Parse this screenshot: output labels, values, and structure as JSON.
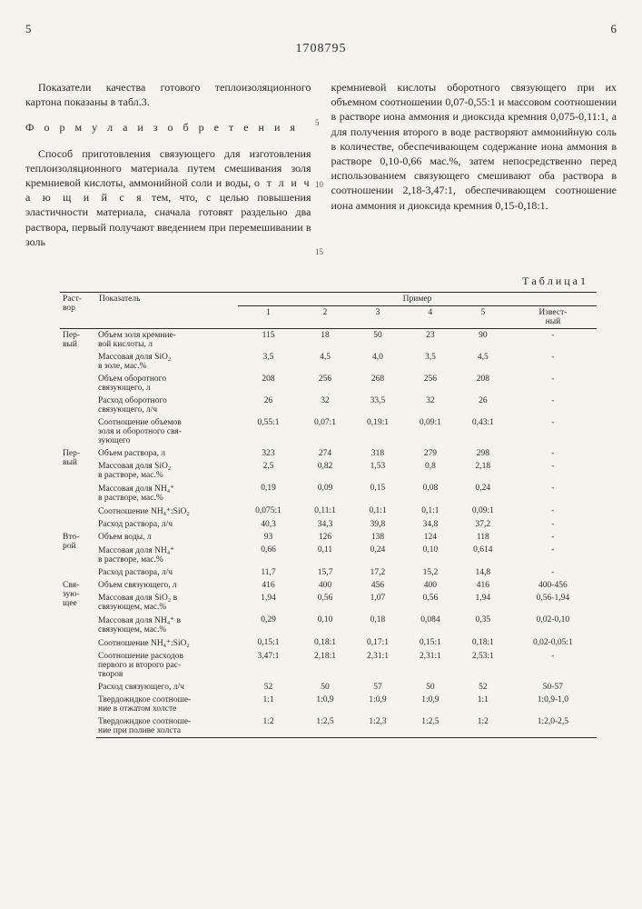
{
  "page": {
    "left_num": "5",
    "right_num": "6",
    "doc_number": "1708795",
    "tick5": "5",
    "tick10": "10",
    "tick15": "15"
  },
  "left_col": {
    "p1": "Показатели качества готового теплоизоляционного картона показаны в табл.3.",
    "formula": "Ф о р м у л а  и з о б р е т е н и я",
    "p2_a": "Способ приготовления связующего для изготовления теплоизоляционного материала путем смешивания золя кремниевой кислоты, аммонийной соли и воды, ",
    "p2_b": "о т л и ч а ю щ и й с я",
    "p2_c": " тем, что, с целью повышения эластичности материала, сначала готовят раздельно два раствора, первый получают введением при перемешивании в золь"
  },
  "right_col": {
    "p1": "кремниевой кислоты оборотного связующего при их объемном соотношении 0,07-0,55:1 и массовом соотношении в растворе иона аммония и диоксида кремния 0,075-0,11:1, а для получения второго в воде растворяют аммонийную соль в количестве, обеспечивающем содержание иона аммония в растворе 0,10-0,66 мас.%, затем непосредственно перед использованием связующего смешивают оба раствора в соотношении 2,18-3,47:1, обеспечивающем соотношение иона аммония и диоксида кремния 0,15-0,18:1."
  },
  "table": {
    "title": "Т а б л и ц а 1",
    "h_rast": "Раст-\nвор",
    "h_pokaz": "Показатель",
    "h_primer": "Пример",
    "h_cols": [
      "1",
      "2",
      "3",
      "4",
      "5",
      "Извест-\nный"
    ],
    "groups": {
      "g1": "Пер-\nвый",
      "g2": "Пер-\nвый",
      "g3": "Вто-\nрой",
      "g4": "Свя-\nзую-\nщее"
    },
    "rows": [
      {
        "g": "g1",
        "l": "Объем золя кремние-\nвой кислоты, л",
        "v": [
          "115",
          "18",
          "50",
          "23",
          "90",
          "-"
        ]
      },
      {
        "g": "g1",
        "l": "Массовая доля SiO₂\nв золе, мас.%",
        "v": [
          "3,5",
          "4,5",
          "4,0",
          "3,5",
          "4,5",
          "-"
        ]
      },
      {
        "g": "g1",
        "l": "Объем оборотного\nсвязующего, л",
        "v": [
          "208",
          "256",
          "268",
          "256",
          "208",
          "-"
        ]
      },
      {
        "g": "g1",
        "l": "Расход оборотного\nсвязующего, л/ч",
        "v": [
          "26",
          "32",
          "33,5",
          "32",
          "26",
          "-"
        ]
      },
      {
        "g": "g1",
        "l": "Соотношение объемов\nзоля и оборотного свя-\nзующего",
        "v": [
          "0,55:1",
          "0,07:1",
          "0,19:1",
          "0,09:1",
          "0,43:1",
          "-"
        ]
      },
      {
        "g": "g2",
        "l": "Объем раствора, л",
        "v": [
          "323",
          "274",
          "318",
          "279",
          "298",
          "-"
        ]
      },
      {
        "g": "g2",
        "l": "Массовая доля SiO₂\nв растворе, мас.%",
        "v": [
          "2,5",
          "0,82",
          "1,53",
          "0,8",
          "2,18",
          "-"
        ]
      },
      {
        "g": "g2",
        "l": "Массовая доля NH₄⁺\nв растворе, мас.%",
        "v": [
          "0,19",
          "0,09",
          "0,15",
          "0,08",
          "0,24",
          "-"
        ]
      },
      {
        "g": "g2",
        "l": "Соотношение NH₄⁺:SiO₂",
        "v": [
          "0,075:1",
          "0,11:1",
          "0,1:1",
          "0,1:1",
          "0,09:1",
          "-"
        ]
      },
      {
        "g": "g2",
        "l": "Расход раствора, л/ч",
        "v": [
          "40,3",
          "34,3",
          "39,8",
          "34,8",
          "37,2",
          "-"
        ]
      },
      {
        "g": "g3",
        "l": "Объем воды, л",
        "v": [
          "93",
          "126",
          "138",
          "124",
          "118",
          "-"
        ]
      },
      {
        "g": "g3",
        "l": "Массовая доля NH₄⁺\nв растворе, мас.%",
        "v": [
          "0,66",
          "0,11",
          "0,24",
          "0,10",
          "0,614",
          "-"
        ]
      },
      {
        "g": "g3",
        "l": "Расход раствора, л/ч",
        "v": [
          "11,7",
          "15,7",
          "17,2",
          "15,2",
          "14,8",
          "-"
        ]
      },
      {
        "g": "g4",
        "l": "Объем связующего, л",
        "v": [
          "416",
          "400",
          "456",
          "400",
          "416",
          "400-456"
        ]
      },
      {
        "g": "g4",
        "l": "Массовая доля SiO₂ в\nсвязующем, мас.%",
        "v": [
          "1,94",
          "0,56",
          "1,07",
          "0,56",
          "1,94",
          "0,56-1,94"
        ]
      },
      {
        "g": "g4",
        "l": "Массовая доля NH₄⁺ в\nсвязующем, мас.%",
        "v": [
          "0,29",
          "0,10",
          "0,18",
          "0,084",
          "0,35",
          "0,02-0,10"
        ]
      },
      {
        "g": "g4",
        "l": "Соотношение NH₄⁺:SiO₂",
        "v": [
          "0,15:1",
          "0,18:1",
          "0,17:1",
          "0,15:1",
          "0,18:1",
          "0,02-0,05:1"
        ]
      },
      {
        "g": "g4",
        "l": "Соотношение расходов\nпервого и второго рас-\nтворов",
        "v": [
          "3,47:1",
          "2,18:1",
          "2,31:1",
          "2,31:1",
          "2,53:1",
          "-"
        ]
      },
      {
        "g": "g4",
        "l": "Расход связующего, л/ч",
        "v": [
          "52",
          "50",
          "57",
          "50",
          "52",
          "50-57"
        ]
      },
      {
        "g": "g4",
        "l": "Твердожидкое соотноше-\nние в отжатом холсте",
        "v": [
          "1:1",
          "1:0,9",
          "1:0,9",
          "1:0,9",
          "1:1",
          "1:0,9-1,0"
        ]
      },
      {
        "g": "g4",
        "l": "Твердожидкое соотноше-\nние при поливе холста",
        "v": [
          "1:2",
          "1:2,5",
          "1:2,3",
          "1:2,5",
          "1:2",
          "1:2,0-2,5"
        ]
      }
    ]
  }
}
